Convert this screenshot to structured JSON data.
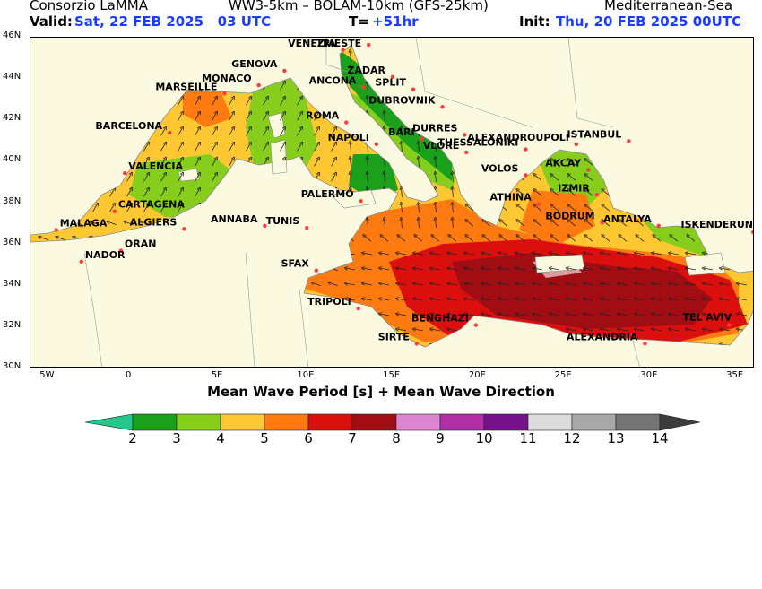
{
  "header": {
    "org": "Consorzio LaMMA",
    "models": "WW3-5km – BOLAM-10km (GFS-25km)",
    "region": "Mediterranean-Sea",
    "valid_label": "Valid:",
    "valid_value": "Sat, 22 FEB 2025   03 UTC",
    "t_label": "T=",
    "t_value": "+51hr",
    "init_label": "Init:",
    "init_value": "Thu, 20 FEB 2025 00UTC"
  },
  "map": {
    "lon_ticks": [
      "5W",
      "0",
      "5E",
      "10E",
      "15E",
      "20E",
      "25E",
      "30E",
      "35E"
    ],
    "lat_ticks": [
      "46N",
      "44N",
      "42N",
      "40N",
      "38N",
      "36N",
      "34N",
      "32N",
      "30N"
    ],
    "caption": "Mean Wave Period [s] + Mean Wave Direction",
    "cities": [
      {
        "name": "VENEZIA",
        "lon": 12.3,
        "lat": 45.4
      },
      {
        "name": "TRIESTE",
        "lon": 13.8,
        "lat": 45.65
      },
      {
        "name": "GENOVA",
        "lon": 8.9,
        "lat": 44.4
      },
      {
        "name": "MONACO",
        "lon": 7.4,
        "lat": 43.7
      },
      {
        "name": "MARSEILLE",
        "lon": 5.4,
        "lat": 43.3
      },
      {
        "name": "ZADAR",
        "lon": 15.2,
        "lat": 44.1
      },
      {
        "name": "SPLIT",
        "lon": 16.4,
        "lat": 43.5
      },
      {
        "name": "ANCONA",
        "lon": 13.5,
        "lat": 43.6
      },
      {
        "name": "DUBROVNIK",
        "lon": 18.1,
        "lat": 42.65
      },
      {
        "name": "ROMA",
        "lon": 12.5,
        "lat": 41.9
      },
      {
        "name": "BARCELONA",
        "lon": 2.2,
        "lat": 41.4
      },
      {
        "name": "DURRES",
        "lon": 19.4,
        "lat": 41.3
      },
      {
        "name": "NAPOLI",
        "lon": 14.25,
        "lat": 40.85
      },
      {
        "name": "ALEXANDROUPOLI",
        "lon": 25.9,
        "lat": 40.85
      },
      {
        "name": "ISTANBUL",
        "lon": 28.95,
        "lat": 41.0
      },
      {
        "name": "THESSALONIKI",
        "lon": 22.95,
        "lat": 40.6
      },
      {
        "name": "BARI",
        "lon": 16.9,
        "lat": 41.1
      },
      {
        "name": "VLORE",
        "lon": 19.5,
        "lat": 40.45
      },
      {
        "name": "VALENCIA",
        "lon": -0.4,
        "lat": 39.45
      },
      {
        "name": "VOLOS",
        "lon": 22.95,
        "lat": 39.35
      },
      {
        "name": "AKCAY",
        "lon": 26.6,
        "lat": 39.6
      },
      {
        "name": "IZMIR",
        "lon": 27.1,
        "lat": 38.4
      },
      {
        "name": "ATHINA",
        "lon": 23.7,
        "lat": 37.95
      },
      {
        "name": "PALERMO",
        "lon": 13.35,
        "lat": 38.1
      },
      {
        "name": "CARTAGENA",
        "lon": -1.0,
        "lat": 37.6
      },
      {
        "name": "BODRUM",
        "lon": 27.4,
        "lat": 37.05
      },
      {
        "name": "ANTALYA",
        "lon": 30.7,
        "lat": 36.9
      },
      {
        "name": "ISKENDERUN",
        "lon": 36.2,
        "lat": 36.6
      },
      {
        "name": "MALAGA",
        "lon": -4.4,
        "lat": 36.7
      },
      {
        "name": "ALGIERS",
        "lon": 3.05,
        "lat": 36.75
      },
      {
        "name": "ANNABA",
        "lon": 7.75,
        "lat": 36.9
      },
      {
        "name": "TUNIS",
        "lon": 10.2,
        "lat": 36.8
      },
      {
        "name": "ORAN",
        "lon": -0.63,
        "lat": 35.7
      },
      {
        "name": "NADOR",
        "lon": -2.93,
        "lat": 35.17
      },
      {
        "name": "SFAX",
        "lon": 10.75,
        "lat": 34.74
      },
      {
        "name": "TRIPOLI",
        "lon": 13.2,
        "lat": 32.9
      },
      {
        "name": "TEL AVIV",
        "lon": 34.8,
        "lat": 32.1
      },
      {
        "name": "BENGHAZI",
        "lon": 20.05,
        "lat": 32.1
      },
      {
        "name": "SIRTE",
        "lon": 16.6,
        "lat": 31.2
      },
      {
        "name": "ALEXANDRIA",
        "lon": 29.9,
        "lat": 31.2
      }
    ]
  },
  "legend": {
    "labels": [
      "2",
      "3",
      "4",
      "5",
      "6",
      "7",
      "8",
      "9",
      "10",
      "11",
      "12",
      "13",
      "14"
    ],
    "colors": {
      "below": "#25c78a",
      "c2_3": "#1aa01a",
      "c3_4": "#86cd1c",
      "c4_5": "#ffc832",
      "c5_6": "#ff7a10",
      "c6_7": "#dc0f0f",
      "c7_8": "#a00e14",
      "c8_9": "#dc86d2",
      "c9_10": "#b12ea6",
      "c10_11": "#74128a",
      "c11_12": "#dcdcdc",
      "c12_13": "#a8a8a8",
      "c13_14": "#747474",
      "above": "#3c3c3c"
    },
    "map_colors": {
      "land": "#fbfae0",
      "border": "#9a9a9a"
    }
  }
}
